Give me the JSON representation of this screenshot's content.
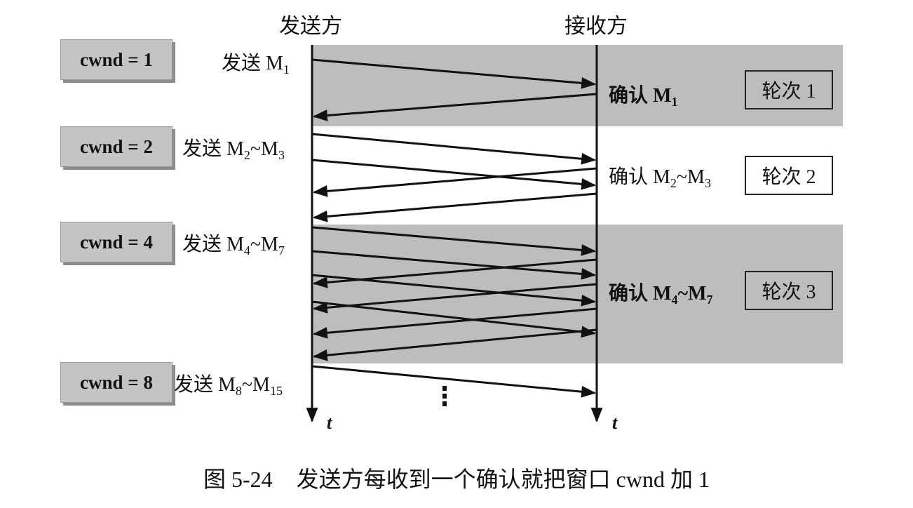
{
  "headers": {
    "sender": "发送方",
    "receiver": "接收方"
  },
  "rounds": [
    {
      "cwnd": "cwnd = 1",
      "send": "发送 M",
      "send_sub": "1",
      "send_tail": "",
      "send_tail_sub": "",
      "ack": "确认 M",
      "ack_sub": "1",
      "ack_tail": "",
      "ack_tail_sub": "",
      "round": "轮次 1",
      "shaded": true
    },
    {
      "cwnd": "cwnd = 2",
      "send": "发送 M",
      "send_sub": "2",
      "send_tail": "~M",
      "send_tail_sub": "3",
      "ack": "确认 M",
      "ack_sub": "2",
      "ack_tail": "~M",
      "ack_tail_sub": "3",
      "round": "轮次 2",
      "shaded": false
    },
    {
      "cwnd": "cwnd = 4",
      "send": "发送 M",
      "send_sub": "4",
      "send_tail": "~M",
      "send_tail_sub": "7",
      "ack": "确认 M",
      "ack_sub": "4",
      "ack_tail": "~M",
      "ack_tail_sub": "7",
      "round": "轮次 3",
      "shaded": true
    },
    {
      "cwnd": "cwnd = 8",
      "send": "发送 M",
      "send_sub": "8",
      "send_tail": "~M",
      "send_tail_sub": "15"
    }
  ],
  "time_axis_label": "t",
  "caption": {
    "figure": "图 5-24",
    "text": "发送方每收到一个确认就把窗口 cwnd 加 1"
  },
  "colors": {
    "shading": "#bdbdbd",
    "lines": "#111111"
  }
}
